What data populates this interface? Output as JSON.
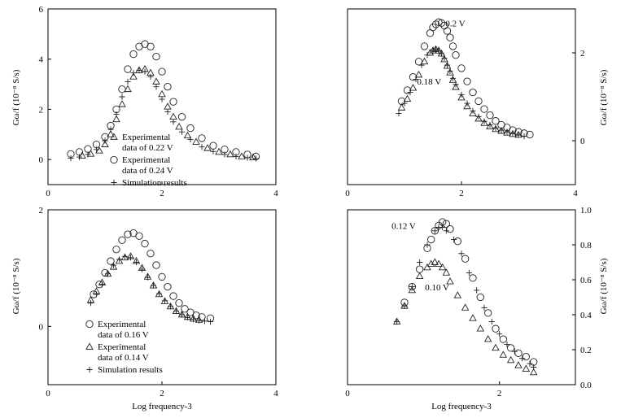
{
  "chart_data": [
    {
      "type": "scatter",
      "xlabel": "",
      "ylabel": "Gω/f (10⁻⁸ S/s)",
      "xlim": [
        0,
        4
      ],
      "ylim": [
        -1,
        6
      ],
      "xticks": [
        0,
        2,
        4
      ],
      "yticks": [
        0,
        2,
        4,
        6
      ],
      "legend": [
        {
          "marker": "triangle",
          "lines": [
            "Experimental",
            "data of 0.22 V"
          ]
        },
        {
          "marker": "circle",
          "lines": [
            "Experimental",
            "data of 0.24 V"
          ]
        },
        {
          "marker": "plus",
          "lines": [
            "Simulation results"
          ]
        }
      ],
      "series": [
        {
          "name": "Experimental data of 0.22 V",
          "marker": "triangle",
          "x": [
            0.6,
            0.75,
            0.9,
            1.0,
            1.1,
            1.2,
            1.3,
            1.4,
            1.5,
            1.6,
            1.7,
            1.8,
            1.9,
            2.0,
            2.1,
            2.2,
            2.3,
            2.45,
            2.6,
            2.8,
            3.0,
            3.2,
            3.4,
            3.6
          ],
          "y": [
            0.15,
            0.22,
            0.35,
            0.6,
            1.0,
            1.6,
            2.2,
            2.8,
            3.3,
            3.55,
            3.6,
            3.45,
            3.1,
            2.6,
            2.1,
            1.7,
            1.3,
            0.95,
            0.7,
            0.45,
            0.3,
            0.2,
            0.12,
            0.08
          ]
        },
        {
          "name": "Experimental data of 0.24 V",
          "marker": "circle",
          "x": [
            0.4,
            0.55,
            0.7,
            0.85,
            1.0,
            1.1,
            1.2,
            1.3,
            1.4,
            1.5,
            1.6,
            1.7,
            1.8,
            1.9,
            2.0,
            2.1,
            2.2,
            2.35,
            2.5,
            2.7,
            2.9,
            3.1,
            3.3,
            3.5,
            3.65
          ],
          "y": [
            0.22,
            0.3,
            0.42,
            0.6,
            0.9,
            1.35,
            2.0,
            2.8,
            3.6,
            4.2,
            4.5,
            4.6,
            4.5,
            4.1,
            3.5,
            2.9,
            2.3,
            1.7,
            1.25,
            0.85,
            0.55,
            0.4,
            0.3,
            0.2,
            0.12
          ]
        },
        {
          "name": "Simulation results",
          "marker": "plus",
          "x": [
            0.4,
            0.55,
            0.7,
            0.85,
            1.0,
            1.1,
            1.2,
            1.3,
            1.4,
            1.5,
            1.6,
            1.7,
            1.8,
            1.9,
            2.0,
            2.1,
            2.2,
            2.35,
            2.5,
            2.7,
            2.9,
            3.1,
            3.3,
            3.5,
            3.65
          ],
          "y": [
            0.05,
            0.1,
            0.2,
            0.4,
            0.75,
            1.2,
            1.8,
            2.5,
            3.1,
            3.45,
            3.55,
            3.5,
            3.3,
            2.9,
            2.4,
            1.9,
            1.5,
            1.1,
            0.8,
            0.5,
            0.32,
            0.2,
            0.12,
            0.07,
            0.04
          ]
        }
      ]
    },
    {
      "type": "scatter",
      "xlabel": "",
      "ylabel": "Gω/f (10⁻⁸ S/s)",
      "xlim": [
        0,
        4
      ],
      "ylim": [
        -1,
        3
      ],
      "xticks": [
        0,
        2,
        4
      ],
      "yticks": [
        0,
        2
      ],
      "yaxis_side": "right",
      "annotations": [
        {
          "text": "0.2 V",
          "x": 1.72,
          "y": 2.6
        },
        {
          "text": "0.18 V",
          "x": 1.22,
          "y": 1.28
        }
      ],
      "series": [
        {
          "name": "0.2 V",
          "marker": "circle",
          "x": [
            0.95,
            1.05,
            1.15,
            1.25,
            1.35,
            1.45,
            1.5,
            1.55,
            1.6,
            1.65,
            1.7,
            1.75,
            1.8,
            1.85,
            1.9,
            2.0,
            2.1,
            2.2,
            2.3,
            2.4,
            2.5,
            2.6,
            2.7,
            2.8,
            2.9,
            3.0,
            3.1,
            3.2
          ],
          "y": [
            0.9,
            1.15,
            1.45,
            1.8,
            2.15,
            2.45,
            2.58,
            2.65,
            2.7,
            2.68,
            2.62,
            2.5,
            2.35,
            2.15,
            1.95,
            1.65,
            1.35,
            1.1,
            0.9,
            0.72,
            0.58,
            0.45,
            0.36,
            0.3,
            0.24,
            0.2,
            0.17,
            0.14
          ]
        },
        {
          "name": "0.18 V",
          "marker": "triangle",
          "x": [
            0.95,
            1.05,
            1.15,
            1.25,
            1.35,
            1.45,
            1.5,
            1.55,
            1.6,
            1.65,
            1.7,
            1.75,
            1.8,
            1.85,
            1.9,
            2.0,
            2.1,
            2.2,
            2.3,
            2.4,
            2.5,
            2.6,
            2.7,
            2.8,
            2.9,
            3.0
          ],
          "y": [
            0.75,
            0.95,
            1.2,
            1.5,
            1.8,
            2.0,
            2.05,
            2.08,
            2.05,
            1.98,
            1.85,
            1.7,
            1.55,
            1.38,
            1.22,
            0.98,
            0.78,
            0.62,
            0.5,
            0.4,
            0.32,
            0.26,
            0.22,
            0.18,
            0.15,
            0.13
          ]
        },
        {
          "name": "",
          "marker": "plus",
          "x": [
            0.9,
            1.0,
            1.1,
            1.2,
            1.3,
            1.4,
            1.5,
            1.55,
            1.6,
            1.65,
            1.7,
            1.75,
            1.8,
            1.85,
            1.9,
            2.0,
            2.1,
            2.2,
            2.3,
            2.4,
            2.5,
            2.6,
            2.7,
            2.8,
            2.9,
            3.0,
            3.1
          ],
          "y": [
            0.62,
            0.85,
            1.1,
            1.4,
            1.72,
            1.95,
            2.05,
            2.08,
            2.05,
            1.98,
            1.88,
            1.72,
            1.58,
            1.42,
            1.28,
            1.05,
            0.85,
            0.68,
            0.55,
            0.44,
            0.36,
            0.29,
            0.24,
            0.2,
            0.16,
            0.13,
            0.1
          ]
        }
      ]
    },
    {
      "type": "scatter",
      "xlabel": "Log frequency-3",
      "ylabel": "Gω/f (10⁻⁸ S/s)",
      "xlim": [
        0,
        4
      ],
      "ylim": [
        -1,
        2
      ],
      "xticks": [
        0,
        2,
        4
      ],
      "yticks": [
        0,
        2
      ],
      "legend": [
        {
          "marker": "circle",
          "lines": [
            "Experimental",
            "data of 0.16 V"
          ]
        },
        {
          "marker": "triangle",
          "lines": [
            "Experimental",
            "data of 0.14 V"
          ]
        },
        {
          "marker": "plus",
          "lines": [
            "Simulation results"
          ]
        }
      ],
      "series": [
        {
          "name": "Experimental data of 0.16 V",
          "marker": "circle",
          "x": [
            0.8,
            0.9,
            1.0,
            1.1,
            1.2,
            1.3,
            1.4,
            1.5,
            1.6,
            1.7,
            1.8,
            1.9,
            2.0,
            2.1,
            2.2,
            2.3,
            2.4,
            2.5,
            2.6,
            2.7,
            2.85
          ],
          "y": [
            0.55,
            0.72,
            0.92,
            1.12,
            1.32,
            1.48,
            1.58,
            1.6,
            1.55,
            1.42,
            1.25,
            1.05,
            0.85,
            0.68,
            0.52,
            0.4,
            0.3,
            0.24,
            0.19,
            0.16,
            0.14
          ]
        },
        {
          "name": "Experimental data of 0.14 V",
          "marker": "triangle",
          "x": [
            0.75,
            0.85,
            0.95,
            1.05,
            1.15,
            1.25,
            1.35,
            1.45,
            1.55,
            1.65,
            1.75,
            1.85,
            1.95,
            2.05,
            2.15,
            2.25,
            2.35,
            2.45,
            2.55,
            2.65
          ],
          "y": [
            0.45,
            0.6,
            0.75,
            0.9,
            1.02,
            1.12,
            1.18,
            1.2,
            1.12,
            1.0,
            0.85,
            0.7,
            0.55,
            0.43,
            0.34,
            0.26,
            0.2,
            0.16,
            0.13,
            0.11
          ]
        },
        {
          "name": "Simulation results",
          "marker": "plus",
          "x": [
            0.75,
            0.85,
            0.95,
            1.05,
            1.15,
            1.25,
            1.35,
            1.45,
            1.55,
            1.65,
            1.75,
            1.85,
            1.95,
            2.05,
            2.15,
            2.25,
            2.35,
            2.45,
            2.55,
            2.65,
            2.75,
            2.85
          ],
          "y": [
            0.4,
            0.55,
            0.72,
            0.9,
            1.05,
            1.15,
            1.2,
            1.18,
            1.1,
            0.98,
            0.84,
            0.7,
            0.56,
            0.44,
            0.34,
            0.26,
            0.2,
            0.15,
            0.12,
            0.1,
            0.09,
            0.08
          ]
        }
      ]
    },
    {
      "type": "scatter",
      "xlabel": "Log frequency-3",
      "ylabel": "Gω/f (10⁻⁸ S/s)",
      "xlim": [
        0,
        3
      ],
      "ylim": [
        0,
        1.0
      ],
      "xticks": [
        0,
        2
      ],
      "yticks": [
        0,
        0.2,
        0.4,
        0.6,
        0.8,
        1.0
      ],
      "yaxis_side": "right",
      "annotations": [
        {
          "text": "0.12 V",
          "x": 0.58,
          "y": 0.89
        },
        {
          "text": "0.10 V",
          "x": 1.02,
          "y": 0.54
        }
      ],
      "series": [
        {
          "name": "0.12 V",
          "marker": "circle",
          "x": [
            0.75,
            0.85,
            0.95,
            1.05,
            1.1,
            1.15,
            1.2,
            1.25,
            1.3,
            1.35,
            1.45,
            1.55,
            1.65,
            1.75,
            1.85,
            1.95,
            2.05,
            2.15,
            2.25,
            2.35,
            2.45
          ],
          "y": [
            0.47,
            0.56,
            0.66,
            0.78,
            0.83,
            0.88,
            0.91,
            0.93,
            0.92,
            0.89,
            0.82,
            0.72,
            0.61,
            0.5,
            0.41,
            0.32,
            0.26,
            0.21,
            0.18,
            0.16,
            0.13
          ]
        },
        {
          "name": "0.10 V",
          "marker": "triangle",
          "x": [
            0.65,
            0.75,
            0.85,
            0.95,
            1.05,
            1.1,
            1.15,
            1.2,
            1.25,
            1.3,
            1.35,
            1.45,
            1.55,
            1.65,
            1.75,
            1.85,
            1.95,
            2.05,
            2.15,
            2.25,
            2.35,
            2.45
          ],
          "y": [
            0.36,
            0.45,
            0.54,
            0.62,
            0.67,
            0.69,
            0.7,
            0.69,
            0.67,
            0.64,
            0.59,
            0.51,
            0.44,
            0.38,
            0.32,
            0.26,
            0.21,
            0.17,
            0.14,
            0.11,
            0.09,
            0.07
          ]
        },
        {
          "name": "",
          "marker": "plus",
          "x": [
            0.65,
            0.75,
            0.85,
            0.95,
            1.05,
            1.15,
            1.2,
            1.25,
            1.3,
            1.4,
            1.5,
            1.6,
            1.7,
            1.8,
            1.9,
            2.0,
            2.1,
            2.2,
            2.3,
            2.4,
            2.45
          ],
          "y": [
            0.36,
            0.45,
            0.56,
            0.7,
            0.8,
            0.88,
            0.9,
            0.9,
            0.88,
            0.83,
            0.75,
            0.64,
            0.54,
            0.44,
            0.36,
            0.29,
            0.23,
            0.19,
            0.15,
            0.12,
            0.1
          ]
        }
      ]
    }
  ]
}
